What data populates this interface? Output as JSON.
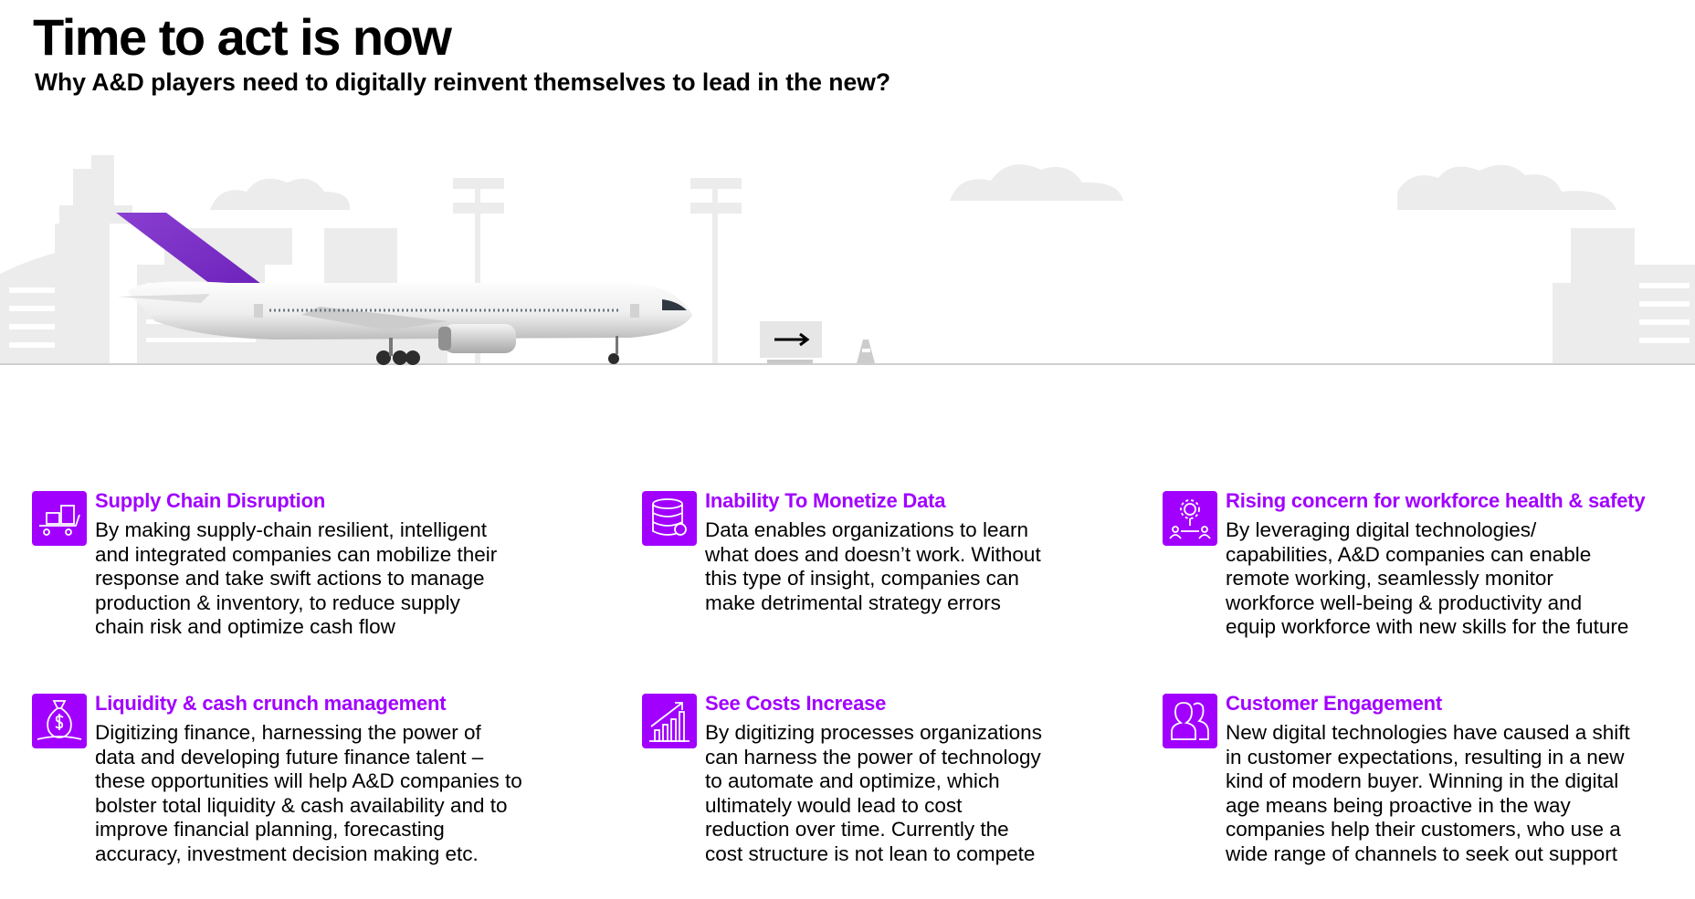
{
  "header": {
    "title": "Time to act is now",
    "subtitle": "Why A&D players need to digitally reinvent themselves to lead in the new?"
  },
  "colors": {
    "accent": "#a100ff",
    "scenery": "#e8e8e8",
    "text": "#000000"
  },
  "cards": [
    {
      "icon": "supply-chain-cart-icon",
      "title": "Supply Chain Disruption",
      "lines": [
        "By making supply-chain resilient, intelligent",
        "and integrated companies can mobilize their",
        "response and take swift actions to manage",
        "production & inventory, to reduce supply",
        "chain risk and optimize cash flow"
      ]
    },
    {
      "icon": "database-icon",
      "title": "Inability To Monetize Data",
      "lines": [
        "Data enables organizations to learn",
        "what does and doesn’t work. Without",
        "this type of insight, companies can",
        "make detrimental strategy errors"
      ]
    },
    {
      "icon": "workforce-network-icon",
      "title": "Rising concern for workforce health & safety",
      "lines": [
        "By leveraging digital technologies/",
        "capabilities, A&D companies can enable",
        "remote working, seamlessly monitor",
        "workforce well-being & productivity and",
        "equip workforce with new skills for the future"
      ]
    },
    {
      "icon": "money-bag-icon",
      "title": "Liquidity & cash crunch management",
      "lines": [
        "Digitizing finance, harnessing the power of",
        "data and developing future finance talent –",
        "these opportunities will help A&D companies to",
        "bolster total liquidity & cash availability and to",
        "improve financial planning, forecasting",
        "accuracy, investment decision making etc."
      ]
    },
    {
      "icon": "rising-chart-icon",
      "title": "See Costs Increase",
      "lines": [
        "By digitizing processes organizations",
        "can harness the power of technology",
        "to automate and optimize, which",
        "ultimately would lead to cost",
        "reduction over time. Currently the",
        "cost structure is not lean to compete"
      ]
    },
    {
      "icon": "customers-icon",
      "title": "Customer Engagement",
      "lines": [
        "New digital technologies have caused a shift",
        "in customer expectations, resulting in a new",
        "kind of modern buyer. Winning in the digital",
        "age means being proactive in the way",
        "companies help their customers, who use a",
        "wide range of channels to seek out support"
      ]
    }
  ]
}
